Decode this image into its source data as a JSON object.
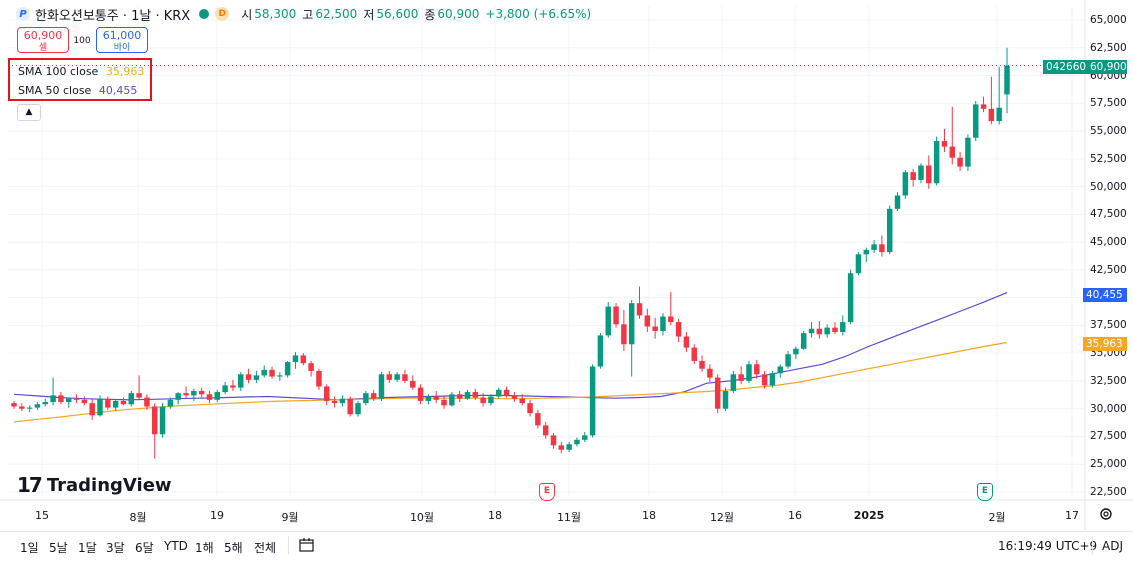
{
  "header": {
    "logo_letter": "P",
    "title": "한화오션보통주 · 1날 · KRX",
    "dbadge": "D",
    "open_label": "시",
    "open": "58,300",
    "high_label": "고",
    "high": "62,500",
    "low_label": "저",
    "low": "56,600",
    "close_label": "종",
    "close": "60,900",
    "change": "+3,800 (+6.65%)"
  },
  "trade": {
    "sell_price": "60,900",
    "sell_label": "셀",
    "spread": "100",
    "buy_price": "61,000",
    "buy_label": "바이"
  },
  "indicators": {
    "sma100_label": "SMA 100 close",
    "sma100_value": "35,963",
    "sma50_label": "SMA 50 close",
    "sma50_value": "40,455"
  },
  "collapse_icon": "chevron-up-icon",
  "price_tags": {
    "symbol_code": "042660",
    "last_price": "60,900",
    "sma50": "40,455",
    "sma100": "35,963"
  },
  "colors": {
    "up": "#089981",
    "down": "#f23645",
    "sma50": "#5b4bd8",
    "sma100": "#f5a623"
  },
  "event_markers": [
    {
      "label": "E",
      "color": "#f23645"
    },
    {
      "label": "E",
      "color": "#089981"
    }
  ],
  "bottom": {
    "ranges": [
      "1일",
      "5날",
      "1달",
      "3달",
      "6달",
      "YTD",
      "1해",
      "5해",
      "전체"
    ],
    "compare_icon": "calendar-range-icon",
    "clock": "16:19:49 UTC+9",
    "adj": "ADJ"
  },
  "watermark": "TradingView",
  "chart_data": {
    "type": "candlestick",
    "title": "한화오션보통주 · 1날 · KRX",
    "ylim": [
      21500,
      66000
    ],
    "y_ticks": [
      "65,000",
      "62,500",
      "60,000",
      "57,500",
      "55,000",
      "52,500",
      "50,000",
      "47,500",
      "45,000",
      "42,500",
      "40,000",
      "37,500",
      "35,000",
      "32,500",
      "30,000",
      "27,500",
      "25,000",
      "22,500"
    ],
    "x_ticks": [
      "15",
      "8월",
      "19",
      "9월",
      "10월",
      "18",
      "11월",
      "18",
      "12월",
      "16",
      "2025",
      "2월",
      "17"
    ],
    "legend": "top-left",
    "grid": true,
    "candles": [
      [
        30500,
        30700,
        30000,
        30200
      ],
      [
        30200,
        30500,
        29800,
        30000
      ],
      [
        30000,
        30300,
        29700,
        30100
      ],
      [
        30100,
        30600,
        29900,
        30400
      ],
      [
        30400,
        30900,
        30200,
        30600
      ],
      [
        30600,
        32800,
        30300,
        31200
      ],
      [
        31200,
        31500,
        30400,
        30600
      ],
      [
        30600,
        31000,
        30100,
        30900
      ],
      [
        30900,
        31300,
        30500,
        30800
      ],
      [
        30800,
        31100,
        30300,
        30500
      ],
      [
        30500,
        30900,
        29000,
        29400
      ],
      [
        29400,
        31200,
        29300,
        30900
      ],
      [
        30900,
        31100,
        29900,
        30100
      ],
      [
        30100,
        30800,
        29800,
        30700
      ],
      [
        30700,
        31000,
        30300,
        30400
      ],
      [
        30400,
        31600,
        30200,
        31400
      ],
      [
        31400,
        33000,
        30800,
        31000
      ],
      [
        31000,
        31300,
        29900,
        30200
      ],
      [
        30200,
        30500,
        25500,
        27700
      ],
      [
        27700,
        30500,
        27400,
        30200
      ],
      [
        30200,
        31000,
        30000,
        30800
      ],
      [
        30800,
        31500,
        30400,
        31400
      ],
      [
        31400,
        32000,
        30900,
        31200
      ],
      [
        31200,
        31800,
        30700,
        31600
      ],
      [
        31600,
        31900,
        31000,
        31300
      ],
      [
        31300,
        31600,
        30500,
        30800
      ],
      [
        30800,
        31700,
        30600,
        31500
      ],
      [
        31500,
        32400,
        31300,
        32100
      ],
      [
        32100,
        32600,
        31600,
        31900
      ],
      [
        31900,
        33300,
        31600,
        33100
      ],
      [
        33100,
        33600,
        32300,
        32600
      ],
      [
        32600,
        33400,
        32300,
        33000
      ],
      [
        33000,
        33900,
        32800,
        33500
      ],
      [
        33500,
        33800,
        32700,
        32900
      ],
      [
        32900,
        33300,
        32500,
        33000
      ],
      [
        33000,
        34300,
        32800,
        34200
      ],
      [
        34200,
        35100,
        33600,
        34800
      ],
      [
        34800,
        35000,
        33900,
        34100
      ],
      [
        34100,
        34300,
        32900,
        33400
      ],
      [
        33400,
        33600,
        31700,
        32000
      ],
      [
        32000,
        32200,
        30300,
        30700
      ],
      [
        30700,
        31100,
        30100,
        30500
      ],
      [
        30500,
        31200,
        30200,
        30900
      ],
      [
        30900,
        31100,
        29300,
        29500
      ],
      [
        29500,
        30700,
        29300,
        30500
      ],
      [
        30500,
        31600,
        30300,
        31400
      ],
      [
        31400,
        31700,
        30700,
        30900
      ],
      [
        30900,
        33300,
        30700,
        33100
      ],
      [
        33100,
        33400,
        32300,
        32600
      ],
      [
        32600,
        33300,
        32400,
        33100
      ],
      [
        33100,
        33500,
        32300,
        32500
      ],
      [
        32500,
        33000,
        31700,
        31900
      ],
      [
        31900,
        32200,
        30400,
        30700
      ],
      [
        30700,
        31300,
        30400,
        31100
      ],
      [
        31100,
        31600,
        30500,
        30800
      ],
      [
        30800,
        31200,
        30000,
        30300
      ],
      [
        30300,
        31500,
        30200,
        31300
      ],
      [
        31300,
        31600,
        30600,
        30900
      ],
      [
        30900,
        31700,
        30800,
        31500
      ],
      [
        31500,
        31800,
        30800,
        31000
      ],
      [
        31000,
        31400,
        30200,
        30500
      ],
      [
        30500,
        31300,
        30300,
        31100
      ],
      [
        31100,
        31900,
        30900,
        31700
      ],
      [
        31700,
        32000,
        31000,
        31200
      ],
      [
        31200,
        31500,
        30600,
        30900
      ],
      [
        30900,
        31300,
        30300,
        30500
      ],
      [
        30500,
        30800,
        29300,
        29600
      ],
      [
        29600,
        29900,
        28200,
        28500
      ],
      [
        28500,
        28800,
        27300,
        27600
      ],
      [
        27600,
        27800,
        26400,
        26700
      ],
      [
        26700,
        27000,
        26000,
        26300
      ],
      [
        26300,
        27000,
        26100,
        26800
      ],
      [
        26800,
        27400,
        26600,
        27200
      ],
      [
        27200,
        27900,
        27000,
        27600
      ],
      [
        27600,
        34000,
        27400,
        33800
      ],
      [
        33800,
        36800,
        33600,
        36600
      ],
      [
        36600,
        39600,
        36400,
        39200
      ],
      [
        39200,
        39500,
        37300,
        37600
      ],
      [
        37600,
        38900,
        35200,
        35800
      ],
      [
        35800,
        39800,
        32900,
        39500
      ],
      [
        39500,
        41000,
        38100,
        38400
      ],
      [
        38400,
        39000,
        36900,
        37400
      ],
      [
        37400,
        38200,
        36300,
        37000
      ],
      [
        37000,
        38600,
        36600,
        38300
      ],
      [
        38300,
        40500,
        37500,
        37800
      ],
      [
        37800,
        38100,
        36000,
        36500
      ],
      [
        36500,
        36900,
        35100,
        35500
      ],
      [
        35500,
        35800,
        34000,
        34300
      ],
      [
        34300,
        34800,
        33300,
        33600
      ],
      [
        33600,
        34000,
        32400,
        32800
      ],
      [
        32800,
        33100,
        29600,
        30000
      ],
      [
        30000,
        31900,
        29800,
        31600
      ],
      [
        31600,
        33400,
        31400,
        33100
      ],
      [
        33100,
        33800,
        32200,
        32500
      ],
      [
        32500,
        34300,
        32300,
        34000
      ],
      [
        34000,
        34400,
        32700,
        33100
      ],
      [
        33100,
        33400,
        31800,
        32100
      ],
      [
        32100,
        33400,
        31900,
        33200
      ],
      [
        33200,
        34000,
        32800,
        33800
      ],
      [
        33800,
        35200,
        33600,
        34900
      ],
      [
        34900,
        35600,
        34500,
        35400
      ],
      [
        35400,
        37000,
        35300,
        36800
      ],
      [
        36800,
        37800,
        36400,
        37200
      ],
      [
        37200,
        37900,
        36300,
        36700
      ],
      [
        36700,
        37600,
        36400,
        37300
      ],
      [
        37300,
        37800,
        36700,
        36900
      ],
      [
        36900,
        38400,
        36600,
        37800
      ],
      [
        37800,
        42500,
        37600,
        42200
      ],
      [
        42200,
        44100,
        42000,
        43900
      ],
      [
        43900,
        44500,
        43200,
        44300
      ],
      [
        44300,
        45200,
        44000,
        44800
      ],
      [
        44800,
        45600,
        43700,
        44100
      ],
      [
        44100,
        48300,
        43900,
        48000
      ],
      [
        48000,
        49500,
        47800,
        49200
      ],
      [
        49200,
        51500,
        48900,
        51300
      ],
      [
        51300,
        51600,
        50000,
        50600
      ],
      [
        50600,
        52100,
        50300,
        51900
      ],
      [
        51900,
        52800,
        49800,
        50300
      ],
      [
        50300,
        54500,
        50100,
        54100
      ],
      [
        54100,
        55200,
        53100,
        53600
      ],
      [
        53600,
        57200,
        52000,
        52600
      ],
      [
        52600,
        53100,
        51400,
        51800
      ],
      [
        51800,
        54700,
        51400,
        54400
      ],
      [
        54400,
        57700,
        54100,
        57400
      ],
      [
        57400,
        58100,
        56700,
        57000
      ],
      [
        57000,
        59900,
        55600,
        55900
      ],
      [
        55900,
        60800,
        55600,
        57100
      ],
      [
        58300,
        62500,
        56600,
        60900
      ]
    ],
    "series": [
      {
        "name": "SMA 50 close",
        "values": [
          31300,
          31150,
          31000,
          30900,
          30850,
          30800,
          30850,
          30900,
          30950,
          31000,
          31050,
          31100,
          31000,
          30900,
          30800,
          30900,
          31000,
          31050,
          31100,
          31150,
          31200,
          31200,
          31150,
          31100,
          31050,
          31000,
          30950,
          31000,
          31100,
          31500,
          32300,
          32500,
          32800,
          33200,
          33600,
          34000,
          34700,
          35600,
          36400,
          37200,
          38000,
          38800,
          39600,
          40455
        ]
      },
      {
        "name": "SMA 100 close",
        "values": [
          28800,
          29050,
          29250,
          29500,
          29750,
          29950,
          30100,
          30250,
          30350,
          30450,
          30550,
          30650,
          30700,
          30750,
          30800,
          30850,
          30900,
          30950,
          30950,
          30950,
          30950,
          30900,
          30900,
          30950,
          31000,
          31050,
          31150,
          31250,
          31350,
          31450,
          31550,
          31700,
          31900,
          32100,
          32400,
          32800,
          33200,
          33600,
          34000,
          34400,
          34800,
          35200,
          35600,
          35963
        ]
      }
    ]
  }
}
